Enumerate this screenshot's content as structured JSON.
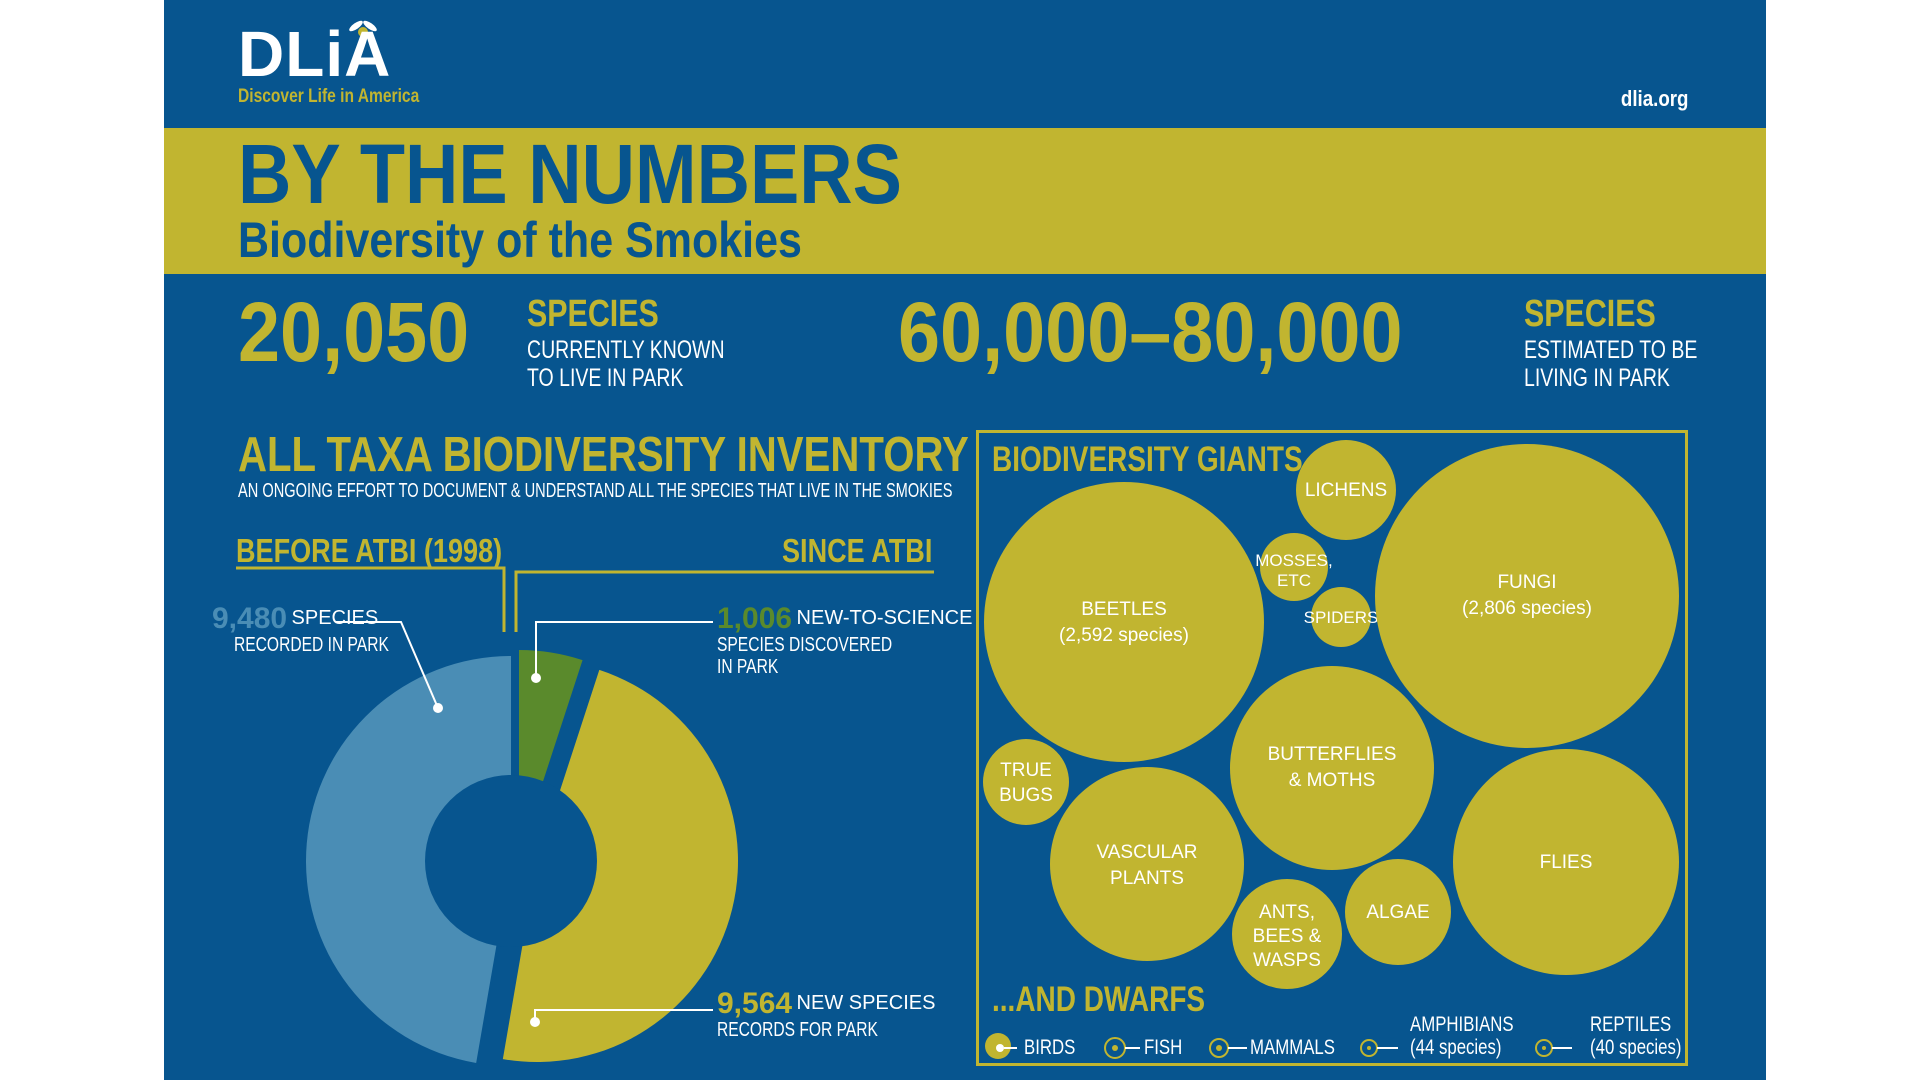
{
  "header": {
    "logo": "DLiA",
    "tagline": "Discover Life in America",
    "url": "dlia.org"
  },
  "title": {
    "main": "BY THE NUMBERS",
    "sub": "Biodiversity of the Smokies"
  },
  "stats": {
    "known": {
      "number": "20,050",
      "word": "SPECIES",
      "line1": "CURRENTLY KNOWN",
      "line2": "TO LIVE IN PARK"
    },
    "estimated": {
      "number": "60,000–80,000",
      "word": "SPECIES",
      "line1": "ESTIMATED TO BE",
      "line2": "LIVING IN PARK"
    }
  },
  "inventory": {
    "title": "ALL TAXA BIODIVERSITY INVENTORY",
    "subtitle": "AN ONGOING EFFORT TO DOCUMENT & UNDERSTAND ALL THE SPECIES THAT LIVE IN THE SMOKIES",
    "before_label": "BEFORE ATBI (1998)",
    "since_label": "SINCE ATBI",
    "annotations": {
      "recorded": {
        "number": "9,480",
        "line1": "SPECIES",
        "line2": "RECORDED IN PARK"
      },
      "new_to_science": {
        "number": "1,006",
        "line1": "NEW-TO-SCIENCE",
        "line2": "SPECIES DISCOVERED",
        "line3": "IN PARK"
      },
      "new_records": {
        "number": "9,564",
        "line1": "NEW SPECIES",
        "line2": "RECORDS FOR PARK"
      }
    }
  },
  "chart_data": {
    "type": "pie",
    "style": "donut",
    "slices": [
      {
        "label": "SPECIES RECORDED IN PARK",
        "value": 9480,
        "color": "#4a8db5"
      },
      {
        "label": "NEW-TO-SCIENCE SPECIES DISCOVERED IN PARK",
        "value": 1006,
        "color": "#5a8a2c"
      },
      {
        "label": "NEW SPECIES RECORDS FOR PARK",
        "value": 9564,
        "color": "#c1b530"
      }
    ]
  },
  "giants": {
    "title": "BIODIVERSITY GIANTS",
    "bubbles": [
      {
        "line1": "BEETLES",
        "line2": "(2,592 species)"
      },
      {
        "line1": "LICHENS",
        "line2": ""
      },
      {
        "line1": "MOSSES,",
        "line2": "ETC"
      },
      {
        "line1": "SPIDERS",
        "line2": ""
      },
      {
        "line1": "FUNGI",
        "line2": "(2,806 species)"
      },
      {
        "line1": "TRUE",
        "line2": "BUGS"
      },
      {
        "line1": "BUTTERFLIES",
        "line2": "& MOTHS"
      },
      {
        "line1": "VASCULAR",
        "line2": "PLANTS"
      },
      {
        "line1": "FLIES",
        "line2": ""
      },
      {
        "line1": "ANTS,",
        "line2": "BEES &",
        "line3": "WASPS"
      },
      {
        "line1": "ALGAE",
        "line2": ""
      }
    ]
  },
  "dwarfs": {
    "title": "...AND DWARFS",
    "items": [
      {
        "line1": "",
        "line2": "BIRDS"
      },
      {
        "line1": "",
        "line2": "FISH"
      },
      {
        "line1": "",
        "line2": "MAMMALS"
      },
      {
        "line1": "AMPHIBIANS",
        "line2": "(44 species)"
      },
      {
        "line1": "REPTILES",
        "line2": "(40 species)"
      }
    ]
  },
  "colors": {
    "navy": "#07558f",
    "gold": "#c1b530",
    "light_blue": "#4a8db5",
    "green": "#5a8a2c"
  }
}
